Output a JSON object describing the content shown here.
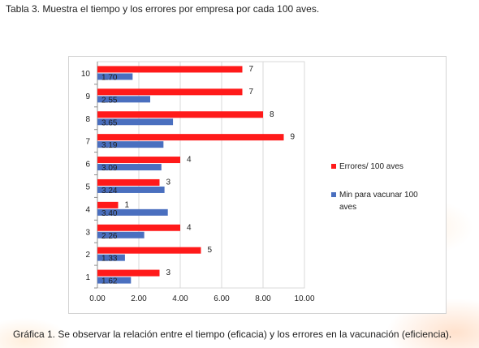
{
  "captions": {
    "top": "Tabla 3. Muestra el tiempo y los errores por empresa por cada 100 aves.",
    "bottom": "Gráfica 1. Se observar la relación entre el tiempo (eficacia) y los errores en la vacunación (eficiencia)."
  },
  "chart_data": {
    "type": "bar",
    "orientation": "horizontal",
    "categories": [
      "1",
      "2",
      "3",
      "4",
      "5",
      "6",
      "7",
      "8",
      "9",
      "10"
    ],
    "series": [
      {
        "name": "Errores/ 100 aves",
        "color": "#ff1a1a",
        "values": [
          3,
          5,
          4,
          1,
          3,
          4,
          9,
          8,
          7,
          7
        ],
        "labels": [
          "3",
          "5",
          "4",
          "1",
          "3",
          "4",
          "9",
          "8",
          "7",
          "7"
        ]
      },
      {
        "name": "Min para vacunar 100 aves",
        "color": "#4a6fbf",
        "values": [
          1.62,
          1.33,
          2.26,
          3.4,
          3.24,
          3.09,
          3.19,
          3.65,
          2.55,
          1.7
        ],
        "labels": [
          "1.62",
          "1.33",
          "2.26",
          "3.40",
          "3.24",
          "3.09",
          "3.19",
          "3.65",
          "2.55",
          "1.70"
        ]
      }
    ],
    "xlim": [
      0,
      10
    ],
    "xticks": [
      "0.00",
      "2.00",
      "4.00",
      "6.00",
      "8.00",
      "10.00"
    ],
    "grid": true,
    "legend_position": "right"
  }
}
